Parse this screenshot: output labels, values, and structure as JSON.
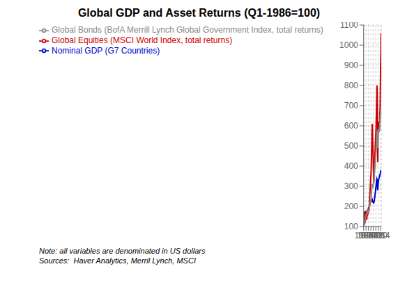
{
  "chart_data": {
    "type": "line",
    "title": "Global GDP and Asset Returns (Q1-1986=100)",
    "note": "Note: all variables are denominated in US dollars\nSources:  Haver Analytics, Merril Lynch, MSCI",
    "x": [
      1986.0,
      1986.25,
      1986.5,
      1986.75,
      1987.0,
      1987.25,
      1987.5,
      1987.75,
      1988.0,
      1988.25,
      1988.5,
      1988.75,
      1989.0,
      1989.25,
      1989.5,
      1989.75,
      1990.0,
      1990.25,
      1990.5,
      1990.75,
      1991.0,
      1991.25,
      1991.5,
      1991.75,
      1992.0,
      1992.25,
      1992.5,
      1992.75,
      1993.0,
      1993.25,
      1993.5,
      1993.75,
      1994.0,
      1994.25,
      1994.5,
      1994.75,
      1995.0,
      1995.25,
      1995.5,
      1995.75,
      1996.0,
      1996.25,
      1996.5,
      1996.75,
      1997.0,
      1997.25,
      1997.5,
      1997.75,
      1998.0,
      1998.25,
      1998.5,
      1998.75,
      1999.0,
      1999.25,
      1999.5,
      1999.75,
      2000.0,
      2000.25,
      2000.5,
      2000.75,
      2001.0,
      2001.25,
      2001.5,
      2001.75,
      2002.0,
      2002.25,
      2002.5,
      2002.75,
      2003.0,
      2003.25,
      2003.5,
      2003.75,
      2004.0,
      2004.25,
      2004.5,
      2004.75,
      2005.0,
      2005.25,
      2005.5,
      2005.75,
      2006.0,
      2006.25,
      2006.5,
      2006.75,
      2007.0,
      2007.25,
      2007.5,
      2007.75,
      2008.0,
      2008.25,
      2008.5,
      2008.75,
      2009.0,
      2009.25,
      2009.5,
      2009.75,
      2010.0,
      2010.25,
      2010.5,
      2010.75,
      2011.0,
      2011.25,
      2011.5,
      2011.75,
      2012.0,
      2012.25,
      2012.5,
      2012.75,
      2013.0,
      2013.25,
      2013.5,
      2013.75,
      2014.0,
      2014.25,
      2014.5,
      2014.75
    ],
    "series": [
      {
        "name": "Nominal GDP (G7 Countries)",
        "color": "#0000CC",
        "values": [
          100,
          103,
          106,
          109,
          113,
          117,
          121,
          125,
          130,
          134,
          138,
          142,
          147,
          151,
          155,
          159,
          163,
          165,
          166,
          165,
          166,
          168,
          170,
          173,
          175,
          176,
          177,
          178,
          179,
          181,
          183,
          185,
          187,
          189,
          191,
          193,
          195,
          198,
          201,
          204,
          207,
          210,
          213,
          216,
          219,
          222,
          222,
          222,
          222,
          223,
          224,
          226,
          228,
          231,
          233,
          234,
          235,
          232,
          229,
          226,
          223,
          222,
          221,
          220,
          218,
          217,
          217,
          218,
          220,
          224,
          229,
          234,
          239,
          245,
          251,
          257,
          263,
          270,
          277,
          284,
          291,
          298,
          305,
          313,
          320,
          327,
          332,
          337,
          335,
          325,
          310,
          295,
          280,
          285,
          295,
          305,
          315,
          325,
          330,
          333,
          335,
          340,
          342,
          344,
          345,
          350,
          355,
          358,
          360,
          362,
          365,
          368,
          372,
          375,
          378,
          380
        ]
      },
      {
        "name": "Global Equities (MSCI World Index, total returns)",
        "color": "#CC0000",
        "values": [
          100,
          110,
          130,
          155,
          175,
          165,
          130,
          115,
          120,
          130,
          140,
          150,
          160,
          170,
          175,
          178,
          170,
          155,
          143,
          133,
          135,
          142,
          152,
          162,
          168,
          165,
          162,
          160,
          162,
          170,
          178,
          188,
          195,
          192,
          188,
          185,
          192,
          205,
          222,
          238,
          252,
          265,
          278,
          290,
          302,
          320,
          340,
          350,
          350,
          370,
          400,
          430,
          460,
          490,
          530,
          570,
          600,
          610,
          590,
          560,
          520,
          490,
          455,
          420,
          385,
          365,
          345,
          330,
          330,
          355,
          380,
          405,
          420,
          440,
          460,
          475,
          490,
          510,
          530,
          545,
          560,
          580,
          605,
          635,
          660,
          700,
          740,
          780,
          800,
          760,
          700,
          610,
          490,
          420,
          460,
          540,
          600,
          620,
          595,
          575,
          580,
          600,
          590,
          580,
          590,
          620,
          645,
          665,
          680,
          730,
          790,
          850,
          900,
          930,
          980,
          1060
        ]
      },
      {
        "name": "Global Bonds (BofA Merrill Lynch Global Government Index, total returns)",
        "color": "#888888",
        "values": [
          100,
          106,
          112,
          118,
          122,
          125,
          127,
          128,
          130,
          133,
          136,
          140,
          143,
          147,
          151,
          155,
          158,
          158,
          157,
          158,
          160,
          163,
          166,
          170,
          172,
          170,
          168,
          167,
          168,
          172,
          176,
          180,
          183,
          180,
          177,
          175,
          178,
          183,
          190,
          198,
          205,
          210,
          215,
          220,
          225,
          228,
          228,
          226,
          225,
          233,
          245,
          260,
          275,
          285,
          295,
          302,
          310,
          308,
          302,
          298,
          292,
          298,
          305,
          312,
          318,
          320,
          318,
          315,
          320,
          335,
          350,
          365,
          375,
          385,
          395,
          405,
          415,
          425,
          435,
          445,
          455,
          465,
          480,
          495,
          510,
          525,
          545,
          565,
          575,
          565,
          548,
          520,
          490,
          500,
          520,
          548,
          570,
          585,
          580,
          572,
          568,
          575,
          580,
          575,
          570,
          580,
          595,
          610,
          620,
          635,
          650,
          665,
          670,
          668,
          665,
          670
        ]
      }
    ],
    "xlim": [
      1986,
      2015.0
    ],
    "ylim": [
      100,
      1100
    ],
    "xticks": [
      1986,
      1990,
      1994,
      1998,
      2002,
      2006,
      2010,
      2014
    ],
    "yticks": [
      100,
      200,
      300,
      400,
      500,
      600,
      700,
      800,
      900,
      1000,
      1100
    ],
    "grid": true
  }
}
